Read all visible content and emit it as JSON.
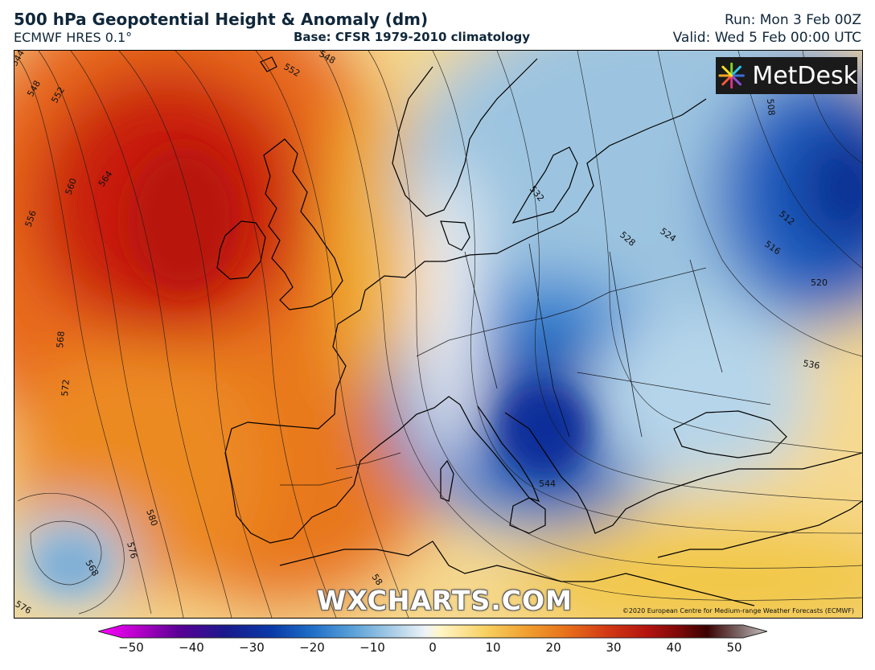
{
  "header": {
    "title": "500 hPa Geopotential Height & Anomaly (dm)",
    "model": "ECMWF HRES 0.1°",
    "base": "Base: CFSR 1979-2010 climatology",
    "run": "Run: Mon 3 Feb 00Z",
    "valid": "Valid: Wed 5 Feb 00:00 UTC"
  },
  "logo": {
    "text": "MetDesk",
    "icon": "metdesk-pinwheel-icon"
  },
  "watermark": "WXCHARTS.COM",
  "copyright": "©2020 European Centre for Medium-range Weather Forecasts (ECMWF)",
  "contour_labels": [
    "544",
    "548",
    "552",
    "548",
    "552",
    "556",
    "560",
    "564",
    "568",
    "572",
    "580",
    "576",
    "568",
    "576",
    "532",
    "528",
    "524",
    "512",
    "516",
    "520",
    "508",
    "536",
    "544",
    "58"
  ],
  "colorbar": {
    "ticks": [
      "−50",
      "−40",
      "−30",
      "−20",
      "−10",
      "0",
      "10",
      "20",
      "30",
      "40",
      "50"
    ],
    "range": [
      -50,
      50
    ],
    "colors": [
      "#ff00ff",
      "#b400c8",
      "#5a0096",
      "#1a1a8c",
      "#0a3aa8",
      "#1f6fc8",
      "#5aa0d8",
      "#a8cde6",
      "#eef4f8",
      "#fff6c8",
      "#f7d060",
      "#f0a030",
      "#e8701a",
      "#d23a14",
      "#b41410",
      "#7a0808",
      "#3a0202",
      "#806a6a",
      "#c8c0c0"
    ]
  }
}
